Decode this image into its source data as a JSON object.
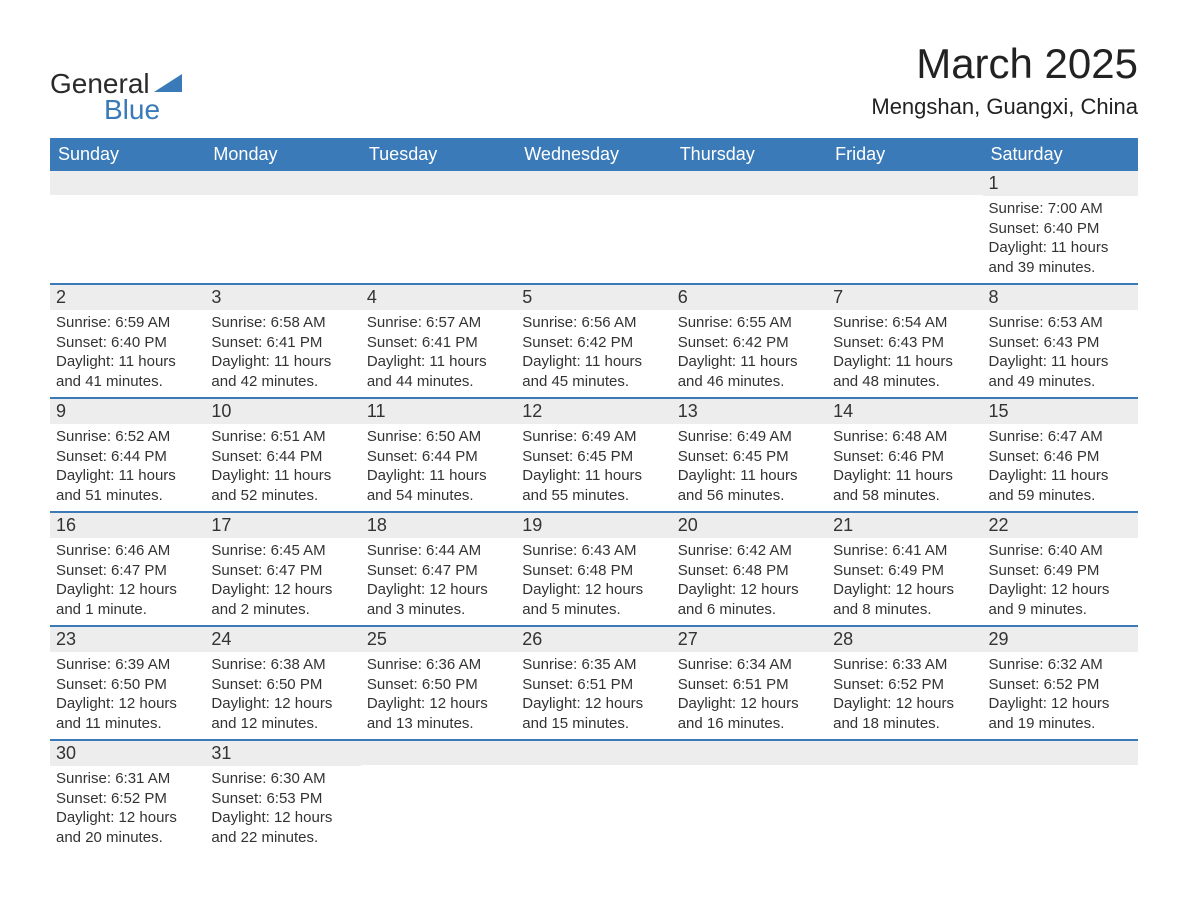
{
  "logo": {
    "text_general": "General",
    "text_blue": "Blue",
    "shape_color": "#3a7ab8",
    "text_color_general": "#2a2a2a",
    "text_color_blue": "#3a7ab8"
  },
  "title": "March 2025",
  "location": "Mengshan, Guangxi, China",
  "colors": {
    "header_bg": "#3a7ab8",
    "header_text": "#ffffff",
    "daynum_bg": "#ededed",
    "border": "#3a7ab8",
    "text": "#333333",
    "background": "#ffffff"
  },
  "typography": {
    "title_fontsize": 42,
    "location_fontsize": 22,
    "dayheader_fontsize": 18,
    "daynum_fontsize": 18,
    "body_fontsize": 15
  },
  "day_headers": [
    "Sunday",
    "Monday",
    "Tuesday",
    "Wednesday",
    "Thursday",
    "Friday",
    "Saturday"
  ],
  "weeks": [
    [
      {
        "num": "",
        "sunrise": "",
        "sunset": "",
        "daylight": ""
      },
      {
        "num": "",
        "sunrise": "",
        "sunset": "",
        "daylight": ""
      },
      {
        "num": "",
        "sunrise": "",
        "sunset": "",
        "daylight": ""
      },
      {
        "num": "",
        "sunrise": "",
        "sunset": "",
        "daylight": ""
      },
      {
        "num": "",
        "sunrise": "",
        "sunset": "",
        "daylight": ""
      },
      {
        "num": "",
        "sunrise": "",
        "sunset": "",
        "daylight": ""
      },
      {
        "num": "1",
        "sunrise": "Sunrise: 7:00 AM",
        "sunset": "Sunset: 6:40 PM",
        "daylight": "Daylight: 11 hours and 39 minutes."
      }
    ],
    [
      {
        "num": "2",
        "sunrise": "Sunrise: 6:59 AM",
        "sunset": "Sunset: 6:40 PM",
        "daylight": "Daylight: 11 hours and 41 minutes."
      },
      {
        "num": "3",
        "sunrise": "Sunrise: 6:58 AM",
        "sunset": "Sunset: 6:41 PM",
        "daylight": "Daylight: 11 hours and 42 minutes."
      },
      {
        "num": "4",
        "sunrise": "Sunrise: 6:57 AM",
        "sunset": "Sunset: 6:41 PM",
        "daylight": "Daylight: 11 hours and 44 minutes."
      },
      {
        "num": "5",
        "sunrise": "Sunrise: 6:56 AM",
        "sunset": "Sunset: 6:42 PM",
        "daylight": "Daylight: 11 hours and 45 minutes."
      },
      {
        "num": "6",
        "sunrise": "Sunrise: 6:55 AM",
        "sunset": "Sunset: 6:42 PM",
        "daylight": "Daylight: 11 hours and 46 minutes."
      },
      {
        "num": "7",
        "sunrise": "Sunrise: 6:54 AM",
        "sunset": "Sunset: 6:43 PM",
        "daylight": "Daylight: 11 hours and 48 minutes."
      },
      {
        "num": "8",
        "sunrise": "Sunrise: 6:53 AM",
        "sunset": "Sunset: 6:43 PM",
        "daylight": "Daylight: 11 hours and 49 minutes."
      }
    ],
    [
      {
        "num": "9",
        "sunrise": "Sunrise: 6:52 AM",
        "sunset": "Sunset: 6:44 PM",
        "daylight": "Daylight: 11 hours and 51 minutes."
      },
      {
        "num": "10",
        "sunrise": "Sunrise: 6:51 AM",
        "sunset": "Sunset: 6:44 PM",
        "daylight": "Daylight: 11 hours and 52 minutes."
      },
      {
        "num": "11",
        "sunrise": "Sunrise: 6:50 AM",
        "sunset": "Sunset: 6:44 PM",
        "daylight": "Daylight: 11 hours and 54 minutes."
      },
      {
        "num": "12",
        "sunrise": "Sunrise: 6:49 AM",
        "sunset": "Sunset: 6:45 PM",
        "daylight": "Daylight: 11 hours and 55 minutes."
      },
      {
        "num": "13",
        "sunrise": "Sunrise: 6:49 AM",
        "sunset": "Sunset: 6:45 PM",
        "daylight": "Daylight: 11 hours and 56 minutes."
      },
      {
        "num": "14",
        "sunrise": "Sunrise: 6:48 AM",
        "sunset": "Sunset: 6:46 PM",
        "daylight": "Daylight: 11 hours and 58 minutes."
      },
      {
        "num": "15",
        "sunrise": "Sunrise: 6:47 AM",
        "sunset": "Sunset: 6:46 PM",
        "daylight": "Daylight: 11 hours and 59 minutes."
      }
    ],
    [
      {
        "num": "16",
        "sunrise": "Sunrise: 6:46 AM",
        "sunset": "Sunset: 6:47 PM",
        "daylight": "Daylight: 12 hours and 1 minute."
      },
      {
        "num": "17",
        "sunrise": "Sunrise: 6:45 AM",
        "sunset": "Sunset: 6:47 PM",
        "daylight": "Daylight: 12 hours and 2 minutes."
      },
      {
        "num": "18",
        "sunrise": "Sunrise: 6:44 AM",
        "sunset": "Sunset: 6:47 PM",
        "daylight": "Daylight: 12 hours and 3 minutes."
      },
      {
        "num": "19",
        "sunrise": "Sunrise: 6:43 AM",
        "sunset": "Sunset: 6:48 PM",
        "daylight": "Daylight: 12 hours and 5 minutes."
      },
      {
        "num": "20",
        "sunrise": "Sunrise: 6:42 AM",
        "sunset": "Sunset: 6:48 PM",
        "daylight": "Daylight: 12 hours and 6 minutes."
      },
      {
        "num": "21",
        "sunrise": "Sunrise: 6:41 AM",
        "sunset": "Sunset: 6:49 PM",
        "daylight": "Daylight: 12 hours and 8 minutes."
      },
      {
        "num": "22",
        "sunrise": "Sunrise: 6:40 AM",
        "sunset": "Sunset: 6:49 PM",
        "daylight": "Daylight: 12 hours and 9 minutes."
      }
    ],
    [
      {
        "num": "23",
        "sunrise": "Sunrise: 6:39 AM",
        "sunset": "Sunset: 6:50 PM",
        "daylight": "Daylight: 12 hours and 11 minutes."
      },
      {
        "num": "24",
        "sunrise": "Sunrise: 6:38 AM",
        "sunset": "Sunset: 6:50 PM",
        "daylight": "Daylight: 12 hours and 12 minutes."
      },
      {
        "num": "25",
        "sunrise": "Sunrise: 6:36 AM",
        "sunset": "Sunset: 6:50 PM",
        "daylight": "Daylight: 12 hours and 13 minutes."
      },
      {
        "num": "26",
        "sunrise": "Sunrise: 6:35 AM",
        "sunset": "Sunset: 6:51 PM",
        "daylight": "Daylight: 12 hours and 15 minutes."
      },
      {
        "num": "27",
        "sunrise": "Sunrise: 6:34 AM",
        "sunset": "Sunset: 6:51 PM",
        "daylight": "Daylight: 12 hours and 16 minutes."
      },
      {
        "num": "28",
        "sunrise": "Sunrise: 6:33 AM",
        "sunset": "Sunset: 6:52 PM",
        "daylight": "Daylight: 12 hours and 18 minutes."
      },
      {
        "num": "29",
        "sunrise": "Sunrise: 6:32 AM",
        "sunset": "Sunset: 6:52 PM",
        "daylight": "Daylight: 12 hours and 19 minutes."
      }
    ],
    [
      {
        "num": "30",
        "sunrise": "Sunrise: 6:31 AM",
        "sunset": "Sunset: 6:52 PM",
        "daylight": "Daylight: 12 hours and 20 minutes."
      },
      {
        "num": "31",
        "sunrise": "Sunrise: 6:30 AM",
        "sunset": "Sunset: 6:53 PM",
        "daylight": "Daylight: 12 hours and 22 minutes."
      },
      {
        "num": "",
        "sunrise": "",
        "sunset": "",
        "daylight": ""
      },
      {
        "num": "",
        "sunrise": "",
        "sunset": "",
        "daylight": ""
      },
      {
        "num": "",
        "sunrise": "",
        "sunset": "",
        "daylight": ""
      },
      {
        "num": "",
        "sunrise": "",
        "sunset": "",
        "daylight": ""
      },
      {
        "num": "",
        "sunrise": "",
        "sunset": "",
        "daylight": ""
      }
    ]
  ]
}
